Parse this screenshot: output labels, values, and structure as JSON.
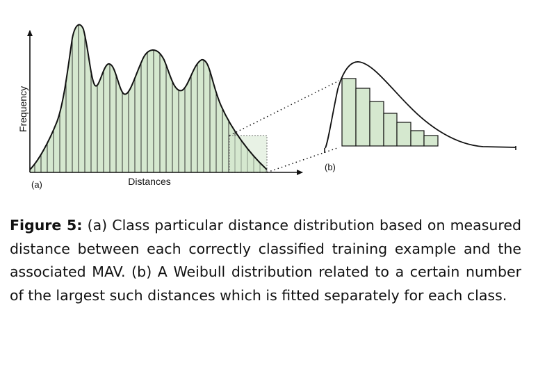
{
  "figure": {
    "panel_a": {
      "label": "(a)",
      "x_axis_label": "Distances",
      "y_axis_label": "Frequency"
    },
    "panel_b": {
      "label": "(b)"
    },
    "colors": {
      "fill": "#d5e8cf",
      "stroke": "#111111",
      "tail_box": "#8a8a8a"
    }
  },
  "caption": {
    "label": "Figure 5:",
    "text": "(a) Class particular distance distribution based on measured distance between each correctly classified training example and the associated MAV. (b) A Weibull distribution related to a certain number of the largest such distances which is fitted separately for each class."
  }
}
